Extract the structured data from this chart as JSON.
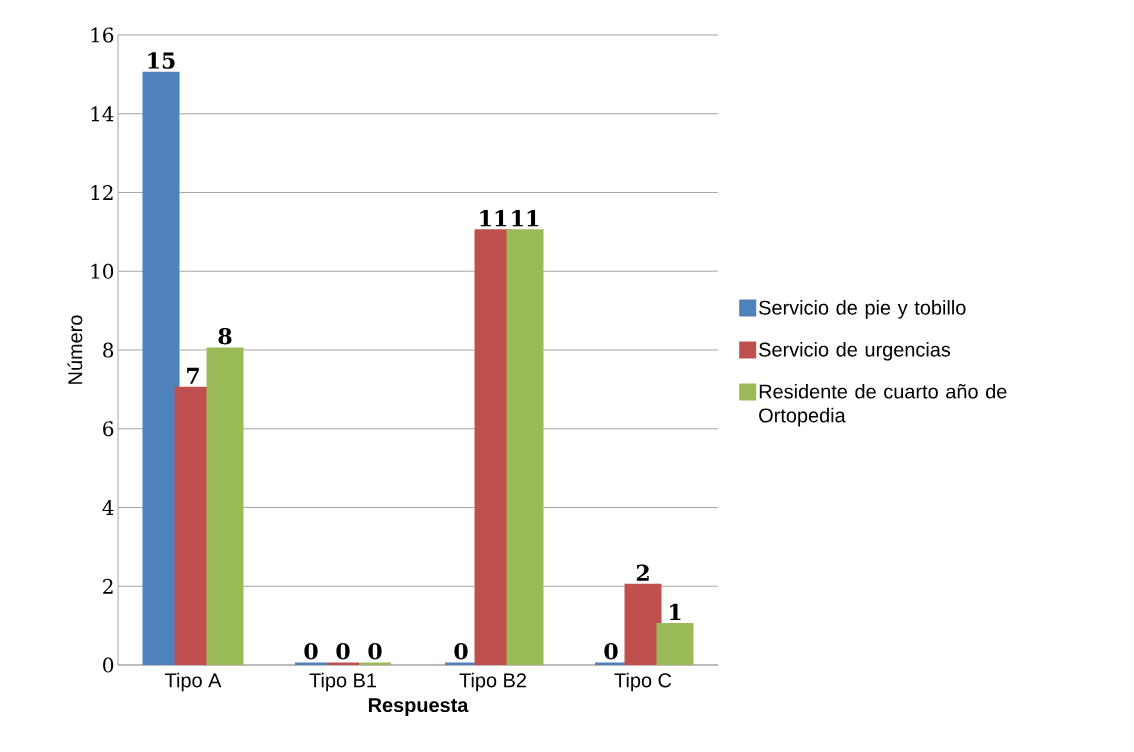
{
  "chart_data": {
    "type": "bar",
    "xlabel": "Respuesta",
    "ylabel": "Número",
    "categories": [
      "Tipo A",
      "Tipo B1",
      "Tipo B2",
      "Tipo C"
    ],
    "series": [
      {
        "name": "Servicio de pie y tobillo",
        "color": "#4f81bd",
        "values": [
          15,
          0,
          0,
          0
        ]
      },
      {
        "name": "Servicio de urgencias",
        "color": "#c0504d",
        "values": [
          7,
          0,
          11,
          2
        ]
      },
      {
        "name": "Residente de cuarto año de Ortopedia",
        "color": "#9bbb59",
        "values": [
          8,
          0,
          11,
          1
        ]
      }
    ],
    "ylim": [
      0,
      16
    ],
    "yticks": [
      0,
      2,
      4,
      6,
      8,
      10,
      12,
      14,
      16
    ],
    "grid": "y",
    "legend": "right",
    "data_labels": true
  }
}
